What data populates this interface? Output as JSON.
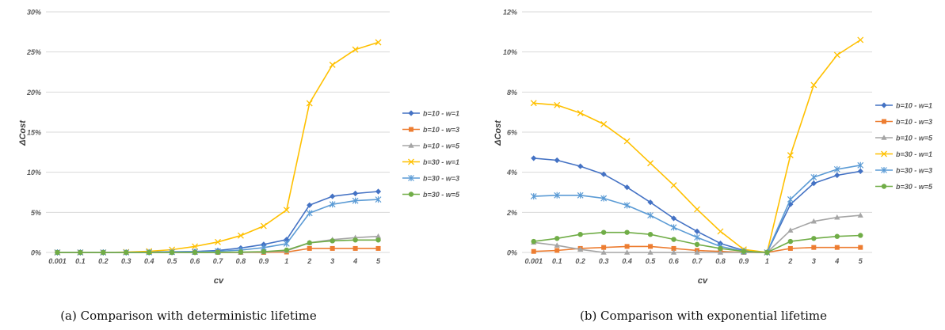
{
  "colors": {
    "b10_w1": "#4472C4",
    "b10_w3": "#ED7D31",
    "b10_w5": "#A5A5A5",
    "b30_w1": "#FFC000",
    "b30_w3": "#5B9BD5",
    "b30_w5": "#70AD47",
    "grid": "#D9D9D9"
  },
  "chart_data": [
    {
      "type": "line",
      "caption": "(a) Comparison with deterministic lifetime",
      "xlabel": "cv",
      "ylabel": "ΔCost",
      "categories": [
        "0.001",
        "0.1",
        "0.2",
        "0.3",
        "0.4",
        "0.5",
        "0.6",
        "0.7",
        "0.8",
        "0.9",
        "1",
        "2",
        "3",
        "4",
        "5"
      ],
      "ylim": [
        0,
        30
      ],
      "yticks": [
        "0%",
        "5%",
        "10%",
        "15%",
        "20%",
        "25%",
        "30%"
      ],
      "ytick_values": [
        0,
        5,
        10,
        15,
        20,
        25,
        30
      ],
      "grid": true,
      "legend_position": "right",
      "series": [
        {
          "name": "b=10 - w=1",
          "key": "b10_w1",
          "marker": "diamond",
          "values": [
            0,
            0,
            0,
            0,
            0.05,
            0.08,
            0.12,
            0.25,
            0.55,
            1.0,
            1.6,
            5.9,
            7.0,
            7.35,
            7.6
          ]
        },
        {
          "name": "b=10 - w=3",
          "key": "b10_w3",
          "marker": "square",
          "values": [
            0,
            0,
            0,
            0,
            0,
            0,
            0,
            0,
            0,
            0,
            0.05,
            0.5,
            0.5,
            0.5,
            0.5
          ]
        },
        {
          "name": "b=10 - w=5",
          "key": "b10_w5",
          "marker": "triangle",
          "values": [
            0,
            0,
            0,
            0,
            0,
            0,
            0,
            0,
            0,
            0.05,
            0.2,
            1.2,
            1.6,
            1.85,
            2.0
          ]
        },
        {
          "name": "b=30 - w=1",
          "key": "b30_w1",
          "marker": "x",
          "values": [
            0,
            0,
            0,
            0.05,
            0.15,
            0.35,
            0.75,
            1.3,
            2.1,
            3.3,
            5.3,
            18.6,
            23.4,
            25.3,
            26.2
          ]
        },
        {
          "name": "b=30 - w=3",
          "key": "b30_w3",
          "marker": "star",
          "values": [
            0,
            0,
            0,
            0,
            0.02,
            0.05,
            0.08,
            0.15,
            0.3,
            0.6,
            1.1,
            4.9,
            6.0,
            6.45,
            6.6
          ]
        },
        {
          "name": "b=30 - w=5",
          "key": "b30_w5",
          "marker": "circle",
          "values": [
            0,
            0,
            0,
            0,
            0,
            0,
            0,
            0.02,
            0.05,
            0.1,
            0.3,
            1.2,
            1.45,
            1.55,
            1.55
          ]
        }
      ]
    },
    {
      "type": "line",
      "caption": "(b) Comparison with exponential lifetime",
      "xlabel": "cv",
      "ylabel": "ΔCost",
      "categories": [
        "0.001",
        "0.1",
        "0.2",
        "0.3",
        "0.4",
        "0.5",
        "0.6",
        "0.7",
        "0.8",
        "0.9",
        "1",
        "2",
        "3",
        "4",
        "5"
      ],
      "ylim": [
        0,
        12
      ],
      "yticks": [
        "0%",
        "2%",
        "4%",
        "6%",
        "8%",
        "10%",
        "12%"
      ],
      "ytick_values": [
        0,
        2,
        4,
        6,
        8,
        10,
        12
      ],
      "grid": true,
      "legend_position": "right",
      "series": [
        {
          "name": "b=10 - w=1",
          "key": "b10_w1",
          "marker": "diamond",
          "values": [
            4.7,
            4.6,
            4.3,
            3.9,
            3.25,
            2.5,
            1.7,
            1.05,
            0.45,
            0.1,
            0,
            2.4,
            3.45,
            3.85,
            4.05
          ]
        },
        {
          "name": "b=10 - w=3",
          "key": "b10_w3",
          "marker": "square",
          "values": [
            0.05,
            0.1,
            0.2,
            0.25,
            0.3,
            0.3,
            0.2,
            0.1,
            0.05,
            0,
            0,
            0.2,
            0.25,
            0.25,
            0.25
          ]
        },
        {
          "name": "b=10 - w=5",
          "key": "b10_w5",
          "marker": "triangle",
          "values": [
            0.5,
            0.35,
            0.15,
            0,
            0,
            0,
            0,
            0,
            0,
            0,
            0,
            1.1,
            1.55,
            1.75,
            1.85
          ]
        },
        {
          "name": "b=30 - w=1",
          "key": "b30_w1",
          "marker": "x",
          "values": [
            7.45,
            7.35,
            6.95,
            6.4,
            5.55,
            4.45,
            3.35,
            2.15,
            1.05,
            0.15,
            0,
            4.85,
            8.35,
            9.85,
            10.6
          ]
        },
        {
          "name": "b=30 - w=3",
          "key": "b30_w3",
          "marker": "star",
          "values": [
            2.8,
            2.85,
            2.85,
            2.7,
            2.35,
            1.85,
            1.25,
            0.75,
            0.3,
            0.05,
            0,
            2.65,
            3.75,
            4.15,
            4.35
          ]
        },
        {
          "name": "b=30 - w=5",
          "key": "b30_w5",
          "marker": "circle",
          "values": [
            0.55,
            0.7,
            0.9,
            1.0,
            1.0,
            0.9,
            0.65,
            0.4,
            0.2,
            0.05,
            0,
            0.55,
            0.7,
            0.8,
            0.85
          ]
        }
      ]
    }
  ]
}
